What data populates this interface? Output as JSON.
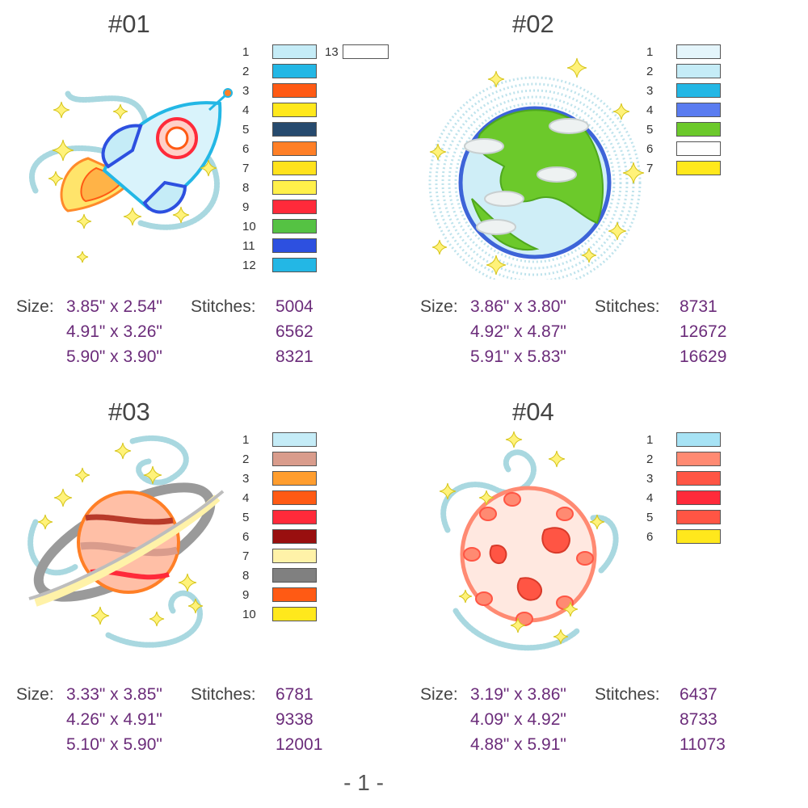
{
  "designs": [
    {
      "title": "#01",
      "art": "rocket",
      "colors": [
        "#c5ecf7",
        "#23b7e5",
        "#ff5a14",
        "#ffe81c",
        "#264a6e",
        "#ff7f26",
        "#ffe21c",
        "#fff04a",
        "#ff2a3a",
        "#55c243",
        "#2d50e0",
        "#23b7e5"
      ],
      "extra_color": {
        "num": "13",
        "color": "#ffffff"
      },
      "size_label": "Size:",
      "stitches_label": "Stitches:",
      "sizes": [
        "3.85\" x 2.54\"",
        "4.91\" x 3.26\"",
        "5.90\" x 3.90\""
      ],
      "stitches": [
        "5004",
        "6562",
        "8321"
      ]
    },
    {
      "title": "#02",
      "art": "earth",
      "colors": [
        "#e4f5fb",
        "#c5ecf7",
        "#23b7e5",
        "#5a7cf0",
        "#6cc92b",
        "#ffffff",
        "#ffe81c"
      ],
      "size_label": "Size:",
      "stitches_label": "Stitches:",
      "sizes": [
        "3.86\" x 3.80\"",
        "4.92\" x 4.87\"",
        "5.91\" x 5.83\""
      ],
      "stitches": [
        "8731",
        "12672",
        "16629"
      ]
    },
    {
      "title": "#03",
      "art": "saturn",
      "colors": [
        "#c5ecf7",
        "#d99c8c",
        "#ff9d2e",
        "#ff5a14",
        "#ff2a3a",
        "#990f0f",
        "#fff2a8",
        "#808080",
        "#ff5a14",
        "#ffe81c"
      ],
      "size_label": "Size:",
      "stitches_label": "Stitches:",
      "sizes": [
        "3.33\" x 3.85\"",
        "4.26\" x 4.91\"",
        "5.10\" x 5.90\""
      ],
      "stitches": [
        "6781",
        "9338",
        "12001"
      ]
    },
    {
      "title": "#04",
      "art": "planet",
      "colors": [
        "#a7e3f5",
        "#ff8a72",
        "#ff5544",
        "#ff2a3a",
        "#ff5544",
        "#ffe81c"
      ],
      "size_label": "Size:",
      "stitches_label": "Stitches:",
      "sizes": [
        "3.19\" x 3.86\"",
        "4.09\" x 4.92\"",
        "4.88\" x 5.91\""
      ],
      "stitches": [
        "6437",
        "8733",
        "11073"
      ]
    }
  ],
  "page_number": "- 1 -"
}
